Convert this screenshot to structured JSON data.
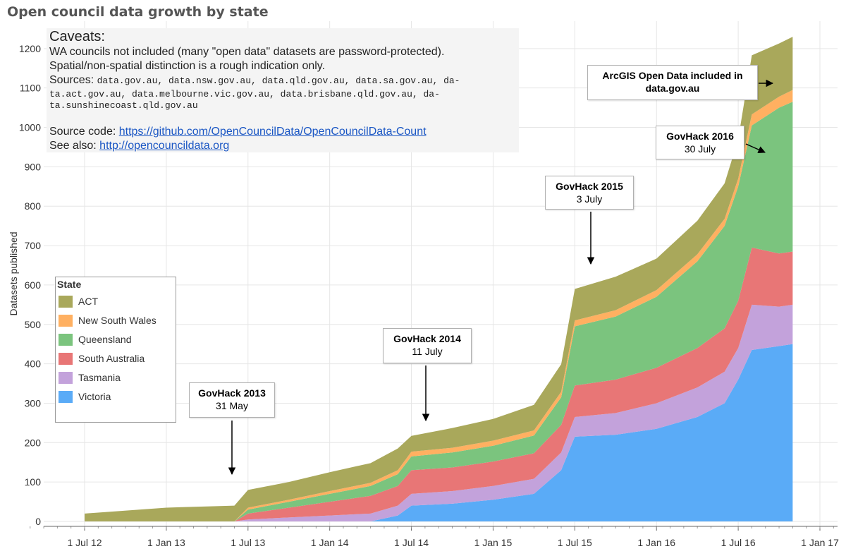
{
  "chart_data": {
    "type": "area",
    "title": "Open council data growth by state",
    "ylabel": "Datasets published",
    "xlabel": "",
    "ylim": [
      0,
      1250
    ],
    "y_ticks": [
      0,
      100,
      200,
      300,
      400,
      500,
      600,
      700,
      800,
      900,
      1000,
      1100,
      1200
    ],
    "x_ticks": [
      "1 Jul 12",
      "1 Jan 13",
      "1 Jul 13",
      "1 Jan 14",
      "1 Jul 14",
      "1 Jan 15",
      "1 Jul 15",
      "1 Jan 16",
      "1 Jul 16",
      "1 Jan 17"
    ],
    "x_range": [
      "2012-03",
      "2017-01"
    ],
    "grid": true,
    "legend_position": "left-middle",
    "stacked": true,
    "x": [
      "Jul 12",
      "Jan 13",
      "Apr 13",
      "Jun 13",
      "Jul 13",
      "Oct 13",
      "Jan 14",
      "Apr 14",
      "Jun 14",
      "Jul 14",
      "Oct 14",
      "Jan 15",
      "Apr 15",
      "Jun 15",
      "Jul 15",
      "Oct 15",
      "Jan 16",
      "Apr 16",
      "Jun 16",
      "Jul 16",
      "Aug 16",
      "Oct 16",
      "Nov 16"
    ],
    "series": [
      {
        "name": "Victoria",
        "color": "#5aabf7",
        "values": [
          0,
          0,
          0,
          0,
          0,
          0,
          0,
          0,
          15,
          40,
          45,
          55,
          70,
          130,
          215,
          220,
          235,
          265,
          300,
          360,
          435,
          445,
          450
        ]
      },
      {
        "name": "Tasmania",
        "color": "#c3a2db",
        "values": [
          0,
          0,
          0,
          0,
          5,
          10,
          15,
          20,
          25,
          30,
          32,
          35,
          38,
          45,
          50,
          55,
          65,
          75,
          80,
          80,
          115,
          100,
          100
        ]
      },
      {
        "name": "South Australia",
        "color": "#e87676",
        "values": [
          0,
          0,
          0,
          0,
          15,
          25,
          35,
          45,
          50,
          60,
          60,
          62,
          65,
          70,
          80,
          85,
          90,
          100,
          110,
          120,
          145,
          135,
          135
        ]
      },
      {
        "name": "Queensland",
        "color": "#7bc47e",
        "values": [
          0,
          0,
          0,
          0,
          10,
          15,
          20,
          25,
          30,
          35,
          38,
          40,
          45,
          70,
          150,
          160,
          180,
          220,
          260,
          290,
          310,
          370,
          380
        ]
      },
      {
        "name": "New South Wales",
        "color": "#ffb061",
        "values": [
          0,
          0,
          0,
          0,
          5,
          5,
          7,
          8,
          10,
          12,
          12,
          13,
          13,
          14,
          15,
          16,
          17,
          18,
          18,
          20,
          28,
          28,
          30
        ]
      },
      {
        "name": "ACT",
        "color": "#a9a85b",
        "values": [
          20,
          35,
          38,
          40,
          45,
          45,
          48,
          50,
          55,
          40,
          50,
          55,
          65,
          70,
          80,
          85,
          80,
          85,
          90,
          100,
          150,
          135,
          135
        ]
      }
    ],
    "annotations": [
      {
        "label": "GovHack 2013",
        "sub": "31 May"
      },
      {
        "label": "GovHack 2014",
        "sub": "11 July"
      },
      {
        "label": "GovHack 2015",
        "sub": "3 July"
      },
      {
        "label": "GovHack 2016",
        "sub": "30 July"
      },
      {
        "label": "ArcGIS Open Data included in data.gov.au",
        "sub": ""
      }
    ]
  },
  "caveats": {
    "heading": "Caveats:",
    "line1": "WA councils not included (many \"open data\" datasets are password-protected).",
    "line2": "Spatial/non-spatial distinction is a rough indication only.",
    "sources_label": "Sources:",
    "sources_1": "data.gov.au, data.nsw.gov.au, data.qld.gov.au, data.sa.gov.au, da-",
    "sources_2": "ta.act.gov.au,  data.melbourne.vic.gov.au, data.brisbane.qld.gov.au, da-",
    "sources_3": "ta.sunshinecoast.qld.gov.au",
    "code_label": "Source code:",
    "code_link": "https://github.com/OpenCouncilData/OpenCouncilData-Count",
    "see_label": "See also:",
    "see_link": "http://opencouncildata.org"
  },
  "legend": {
    "title": "State",
    "items": [
      {
        "label": "ACT",
        "color": "#a9a85b"
      },
      {
        "label": "New South Wales",
        "color": "#ffb061"
      },
      {
        "label": "Queensland",
        "color": "#7bc47e"
      },
      {
        "label": "South Australia",
        "color": "#e87676"
      },
      {
        "label": "Tasmania",
        "color": "#c3a2db"
      },
      {
        "label": "Victoria",
        "color": "#5aabf7"
      }
    ]
  }
}
